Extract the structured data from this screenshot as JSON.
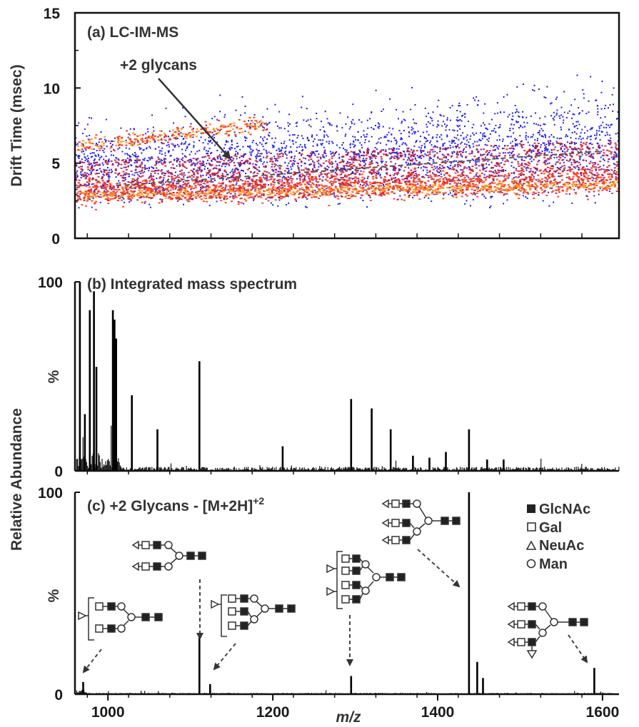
{
  "chart_data": [
    {
      "type": "heatmap",
      "panel_label": "(a) LC-IM-MS",
      "annotation": "+2 glycans",
      "ylabel": "Drift Time (msec)",
      "xlim": [
        960,
        1620
      ],
      "ylim": [
        0,
        15
      ],
      "yticks": [
        "0",
        "5",
        "10",
        "15"
      ],
      "trend_line": {
        "x": [
          1010,
          1600
        ],
        "y": [
          3.5,
          5.8
        ]
      },
      "colors": [
        "#1d1df0",
        "#c0102a",
        "#ff3a16",
        "#ff9a1e",
        "#fff07a"
      ]
    },
    {
      "type": "bar",
      "panel_label": "(b) Integrated mass spectrum",
      "ylabel": "%",
      "ylim": [
        0,
        100
      ],
      "yticks": [
        "0",
        "100"
      ],
      "peaks": {
        "x": [
          966,
          972,
          978,
          983,
          986,
          1006,
          1008,
          1010,
          1029,
          1060,
          1111,
          1212,
          1295,
          1320,
          1343,
          1370,
          1390,
          1410,
          1438,
          1460,
          1480
        ],
        "y": [
          100,
          30,
          85,
          95,
          55,
          85,
          80,
          70,
          40,
          22,
          58,
          13,
          38,
          33,
          22,
          8,
          7,
          10,
          22,
          6,
          6
        ]
      }
    },
    {
      "type": "bar",
      "panel_label": "(c) +2 Glycans -  [M+2H]",
      "panel_label_sup": "+2",
      "ylabel": "%",
      "shared_ylabel": "Relative Abundance",
      "xlabel": "m/z",
      "xlim": [
        960,
        1620
      ],
      "ylim": [
        0,
        100
      ],
      "yticks": [
        "0",
        "100"
      ],
      "xticks": [
        "1000",
        "1200",
        "1400",
        "1600"
      ],
      "peaks": {
        "x": [
          970,
          1111,
          1124,
          1295,
          1438,
          1448,
          1455,
          1590
        ],
        "y": [
          6,
          28,
          5,
          9,
          100,
          16,
          8,
          13
        ]
      },
      "legend": [
        "GlcNAc",
        "Gal",
        "NeuAc",
        "Man"
      ]
    }
  ]
}
